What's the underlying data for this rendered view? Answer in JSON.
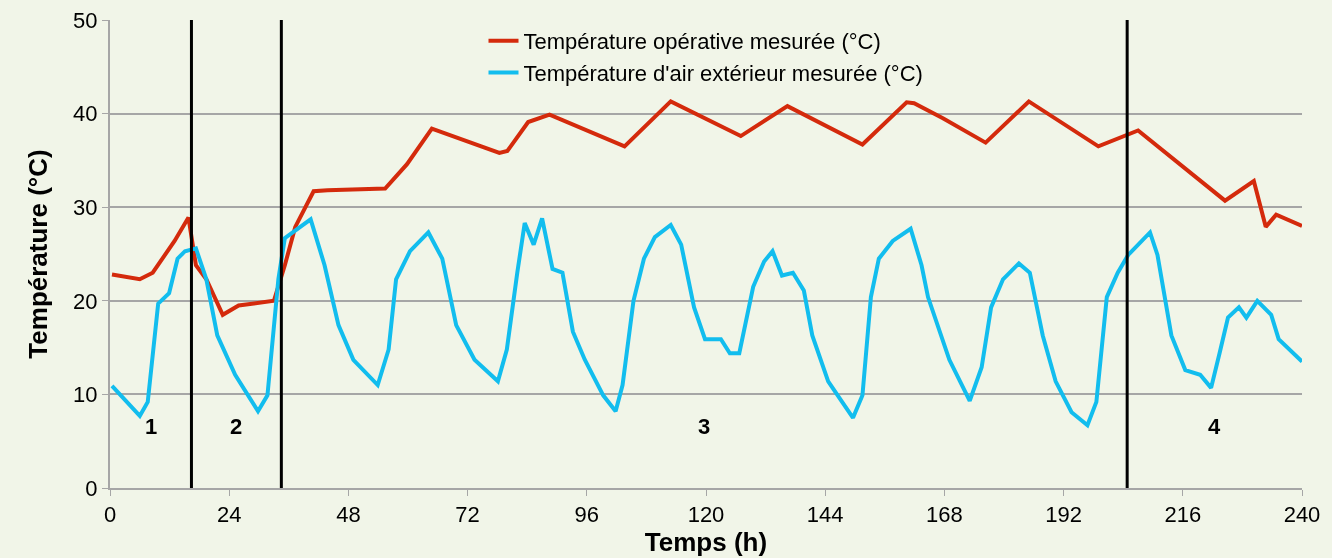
{
  "chart_data": {
    "type": "line",
    "xlabel": "Temps (h)",
    "ylabel": "Température (°C)",
    "xlim": [
      0,
      240
    ],
    "xticks": [
      0,
      24,
      48,
      72,
      96,
      120,
      144,
      168,
      192,
      216,
      240
    ],
    "ylim": [
      0,
      50
    ],
    "yticks": [
      0,
      10,
      20,
      30,
      40,
      50
    ],
    "grid": "y",
    "legend": "top",
    "marker": "none",
    "line_style": "solid",
    "series": [
      {
        "name": "Température opérative mesurée (°C)",
        "color": "#d42a0c",
        "x": [
          0.4,
          6,
          8.6,
          13,
          15.8,
          17.3,
          19.4,
          22.7,
          25.9,
          33,
          35.2,
          37.3,
          41,
          43.8,
          55.4,
          59.8,
          64.8,
          78.4,
          80,
          84.2,
          88.5,
          103.6,
          112.9,
          127,
          136.4,
          151.5,
          160.4,
          161.9,
          167.7,
          176.3,
          185,
          199,
          207,
          224.5,
          230.3,
          232.7,
          234.8,
          240
        ],
        "values": [
          22.8,
          22.3,
          23,
          26.4,
          28.9,
          23.8,
          22.3,
          18.5,
          19.5,
          20,
          23.8,
          27.9,
          31.7,
          31.8,
          32,
          34.6,
          38.4,
          35.8,
          36,
          39.1,
          39.9,
          36.5,
          41.3,
          37.6,
          40.8,
          36.7,
          41.2,
          41.1,
          39.5,
          36.9,
          41.3,
          36.5,
          38.2,
          30.7,
          32.8,
          27.9,
          29.2,
          28
        ]
      },
      {
        "name": "Température d'air extérieur mesurée (°C)",
        "color": "#12bdee",
        "x": [
          0.4,
          6,
          7.6,
          9.7,
          11.9,
          13.6,
          15.1,
          17.3,
          19.4,
          21.6,
          25.2,
          29.8,
          31.7,
          33.9,
          35.2,
          40.4,
          43.2,
          46,
          49,
          53.9,
          56.1,
          57.6,
          60.4,
          64.1,
          66.9,
          69.7,
          73.4,
          78.1,
          79.9,
          82,
          83.5,
          85.3,
          87,
          89.1,
          91.1,
          93.2,
          95.6,
          99.3,
          101.8,
          103.2,
          105.4,
          107.5,
          109.7,
          112.9,
          115,
          117.6,
          119.8,
          123,
          124.8,
          126.7,
          129.5,
          131.7,
          133.4,
          135.3,
          137.5,
          139.7,
          141.4,
          144.6,
          147.4,
          149.6,
          151.5,
          153.2,
          154.8,
          157.6,
          161.2,
          163.4,
          164.7,
          169,
          173.1,
          175.5,
          177.4,
          179.8,
          183,
          185.2,
          187.8,
          190.4,
          193.6,
          196.8,
          198.6,
          200.7,
          202.9,
          205,
          209.4,
          210.9,
          213.7,
          216.5,
          219.5,
          221.7,
          223.4,
          225.1,
          227.3,
          228.8,
          231,
          233.8,
          235.3,
          240
        ],
        "values": [
          10.9,
          7.7,
          9.2,
          19.7,
          20.8,
          24.5,
          25.3,
          25.6,
          22.3,
          16.3,
          12.1,
          8.2,
          9.9,
          22.3,
          26.7,
          28.7,
          23.8,
          17.4,
          13.7,
          11,
          14.8,
          22.3,
          25.3,
          27.3,
          24.5,
          17.4,
          13.7,
          11.4,
          14.8,
          23,
          28.3,
          26,
          28.8,
          23.4,
          23,
          16.7,
          13.7,
          9.9,
          8.2,
          11,
          20,
          24.5,
          26.8,
          28.1,
          26,
          19.3,
          15.9,
          15.9,
          14.4,
          14.4,
          21.5,
          24.2,
          25.3,
          22.7,
          23,
          21.1,
          16.3,
          11.4,
          9.2,
          7.5,
          9.9,
          20.4,
          24.5,
          26.4,
          27.7,
          23.8,
          20.4,
          13.7,
          9.3,
          12.9,
          19.3,
          22.3,
          24,
          23,
          16.3,
          11.4,
          8.1,
          6.7,
          9.2,
          20.4,
          23,
          24.9,
          27.3,
          24.9,
          16.3,
          12.6,
          12.1,
          10.7,
          14.4,
          18.2,
          19.3,
          18.2,
          20,
          18.5,
          15.9,
          13.5
        ]
      }
    ],
    "ref_lines": [
      {
        "axis": "x",
        "value": 16.4,
        "color": "#000000"
      },
      {
        "axis": "x",
        "value": 34.5,
        "color": "#000000"
      },
      {
        "axis": "x",
        "value": 204.8,
        "color": "#000000"
      }
    ],
    "annotations": [
      "1",
      "2",
      "3",
      "4"
    ]
  }
}
